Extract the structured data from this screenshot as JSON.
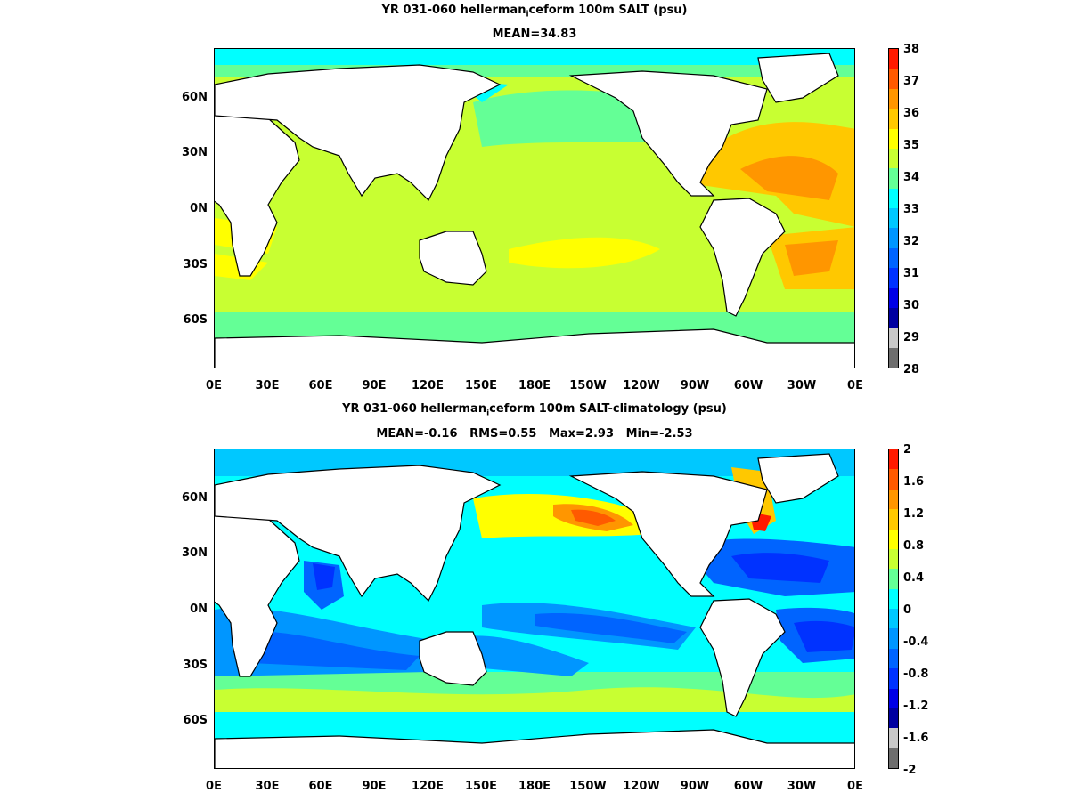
{
  "panel1": {
    "title_pre": "YR 031-060 hellerman",
    "title_sub": "i",
    "title_post": "ceform 100m SALT (psu)",
    "subtitle": "MEAN=34.83",
    "colorbar_labels": [
      "38",
      "37",
      "36",
      "35",
      "34",
      "33",
      "32",
      "31",
      "30",
      "29",
      "28"
    ],
    "colorbar_colors": [
      "#ff1a00",
      "#ff5a00",
      "#ff9600",
      "#ffc800",
      "#ffff00",
      "#c8ff32",
      "#64ff96",
      "#00ffff",
      "#00c8ff",
      "#0096ff",
      "#0064ff",
      "#0032ff",
      "#0000e6",
      "#0000a0",
      "#c8c8c8",
      "#6e6e6e"
    ]
  },
  "panel2": {
    "title_pre": "YR 031-060 hellerman",
    "title_sub": "i",
    "title_post": "ceform 100m SALT-climatology (psu)",
    "subtitle": "MEAN=-0.16   RMS=0.55   Max=2.93   Min=-2.53",
    "colorbar_labels": [
      "2",
      "1.6",
      "1.2",
      "0.8",
      "0.4",
      "0",
      "-0.4",
      "-0.8",
      "-1.2",
      "-1.6",
      "-2"
    ],
    "colorbar_colors": [
      "#ff1a00",
      "#ff5a00",
      "#ff9600",
      "#ffc800",
      "#ffff00",
      "#c8ff32",
      "#64ff96",
      "#00ffff",
      "#00c8ff",
      "#0096ff",
      "#0064ff",
      "#0032ff",
      "#0000e6",
      "#0000a0",
      "#c8c8c8",
      "#6e6e6e"
    ]
  },
  "x_ticks": [
    "0E",
    "30E",
    "60E",
    "90E",
    "120E",
    "150E",
    "180E",
    "150W",
    "120W",
    "90W",
    "60W",
    "30W",
    "0E"
  ],
  "y_ticks": [
    "60N",
    "30N",
    "0N",
    "30S",
    "60S"
  ],
  "land_color": "#ffffff",
  "coast_color": "#000000"
}
